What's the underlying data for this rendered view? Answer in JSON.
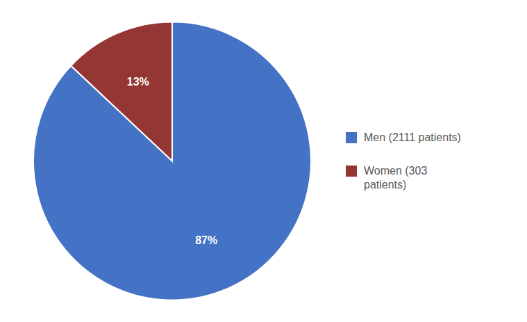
{
  "chart_data": {
    "type": "pie",
    "categories": [
      "Men (2111 patients)",
      "Women (303\npatients)"
    ],
    "values": [
      87,
      13
    ],
    "value_labels": [
      "87%",
      "13%"
    ],
    "data_labels": true,
    "colors": [
      "#4472C4",
      "#943634"
    ],
    "legend": "right"
  }
}
